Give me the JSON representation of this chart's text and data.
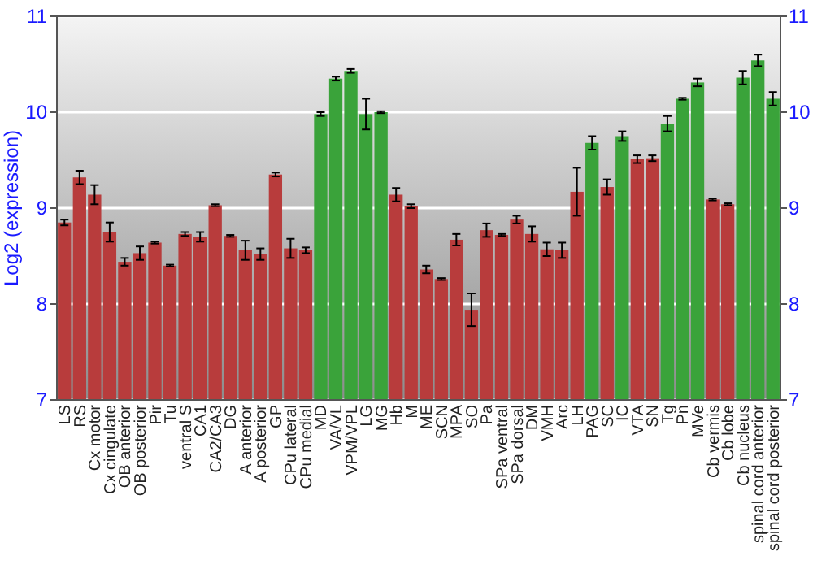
{
  "chart_data": {
    "type": "bar",
    "ylabel": "Log2 (expression)",
    "categories": [
      "LS",
      "RS",
      "Cx motor",
      "Cx cingulate",
      "OB anterior",
      "OB posterior",
      "Pir",
      "Tu",
      "ventral S",
      "CA1",
      "CA2/CA3",
      "DG",
      "A anterior",
      "A posterior",
      "GP",
      "CPu lateral",
      "CPu medial",
      "MD",
      "VA/VL",
      "VPM/VPL",
      "LG",
      "MG",
      "Hb",
      "M",
      "ME",
      "SCN",
      "MPA",
      "SO",
      "Pa",
      "SPa ventral",
      "SPa dorsal",
      "DM",
      "VMH",
      "Arc",
      "LH",
      "PAG",
      "SC",
      "IC",
      "VTA",
      "SN",
      "Tg",
      "Pn",
      "MVe",
      "Cb vermis",
      "Cb lobe",
      "Cb nucleus",
      "spinal cord anterior",
      "spinal cord posterior"
    ],
    "values": [
      8.85,
      9.32,
      9.14,
      8.75,
      8.44,
      8.53,
      8.64,
      8.4,
      8.73,
      8.7,
      9.03,
      8.71,
      8.56,
      8.52,
      9.35,
      8.58,
      8.56,
      9.98,
      10.35,
      10.43,
      9.98,
      10.0,
      9.14,
      9.02,
      8.36,
      8.26,
      8.67,
      7.94,
      8.77,
      8.72,
      8.88,
      8.73,
      8.57,
      8.56,
      9.17,
      9.68,
      9.22,
      9.75,
      9.51,
      9.52,
      9.88,
      10.14,
      10.31,
      9.09,
      9.04,
      10.36,
      10.54,
      10.14
    ],
    "errors": [
      0.03,
      0.07,
      0.1,
      0.1,
      0.04,
      0.07,
      0.01,
      0.01,
      0.02,
      0.05,
      0.01,
      0.01,
      0.1,
      0.06,
      0.02,
      0.1,
      0.03,
      0.02,
      0.02,
      0.02,
      0.16,
      0.01,
      0.07,
      0.02,
      0.04,
      0.01,
      0.06,
      0.17,
      0.07,
      0.01,
      0.04,
      0.08,
      0.07,
      0.08,
      0.25,
      0.07,
      0.08,
      0.05,
      0.04,
      0.03,
      0.08,
      0.01,
      0.04,
      0.01,
      0.01,
      0.07,
      0.06,
      0.07
    ],
    "colors": [
      "#b83c3c",
      "#b83c3c",
      "#b83c3c",
      "#b83c3c",
      "#b83c3c",
      "#b83c3c",
      "#b83c3c",
      "#b83c3c",
      "#b83c3c",
      "#b83c3c",
      "#b83c3c",
      "#b83c3c",
      "#b83c3c",
      "#b83c3c",
      "#b83c3c",
      "#b83c3c",
      "#b83c3c",
      "#3aa33a",
      "#3aa33a",
      "#3aa33a",
      "#3aa33a",
      "#3aa33a",
      "#b83c3c",
      "#b83c3c",
      "#b83c3c",
      "#b83c3c",
      "#b83c3c",
      "#b83c3c",
      "#b83c3c",
      "#b83c3c",
      "#b83c3c",
      "#b83c3c",
      "#b83c3c",
      "#b83c3c",
      "#b83c3c",
      "#3aa33a",
      "#b83c3c",
      "#3aa33a",
      "#b83c3c",
      "#b83c3c",
      "#3aa33a",
      "#3aa33a",
      "#3aa33a",
      "#b83c3c",
      "#b83c3c",
      "#3aa33a",
      "#3aa33a",
      "#3aa33a"
    ],
    "ylim": [
      7,
      11
    ],
    "yticks": [
      7,
      8,
      9,
      10,
      11
    ],
    "y2lim": [
      7,
      11
    ],
    "y2ticks": [
      7,
      8,
      9,
      10,
      11
    ],
    "grid": "y"
  }
}
